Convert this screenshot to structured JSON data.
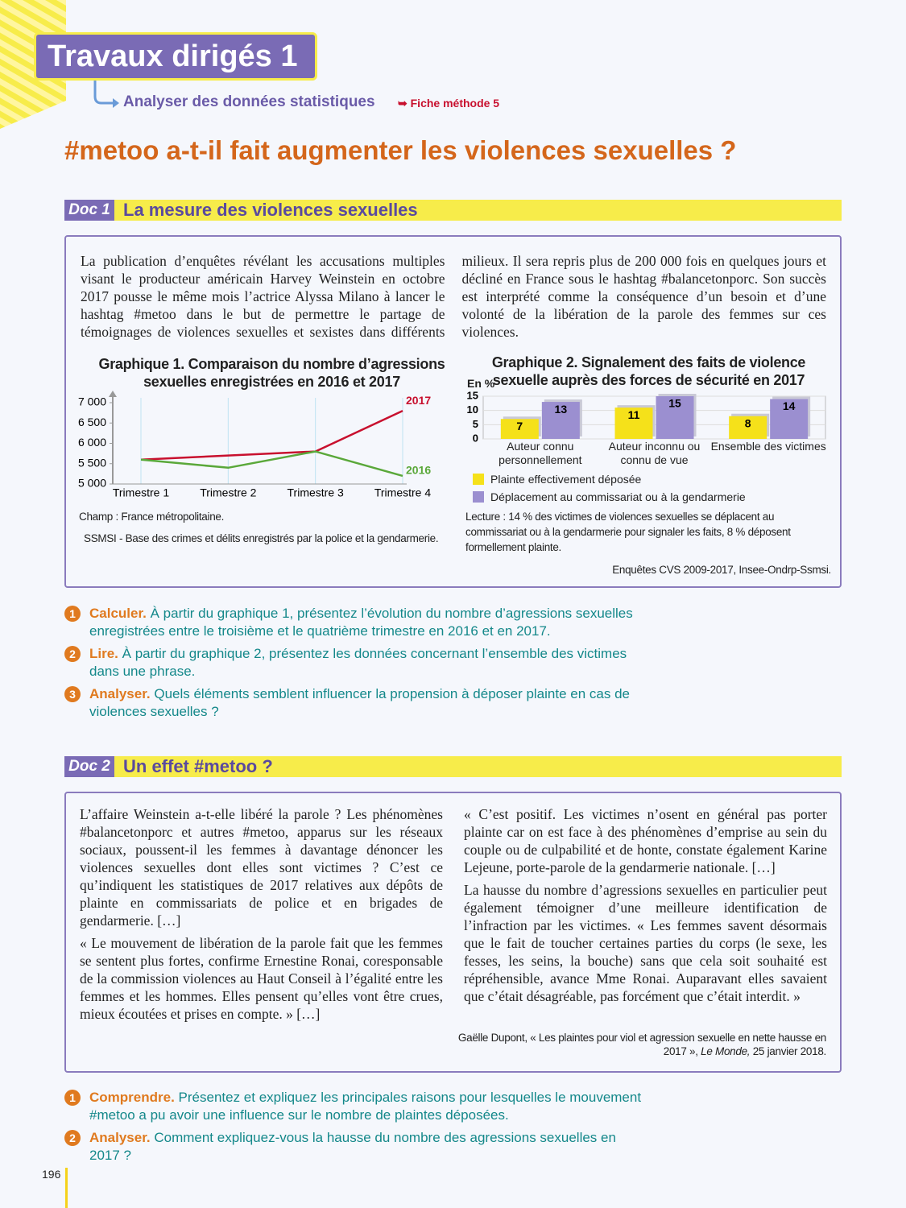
{
  "header": {
    "title": "Travaux dirigés 1",
    "subtitle": "Analyser des données statistiques",
    "method": "Fiche méthode 5"
  },
  "main_title": "#metoo a-t-il fait augmenter les violences sexuelles ?",
  "doc1": {
    "tag": "Doc 1",
    "title": "La mesure des violences sexuelles",
    "text": "La publication d’enquêtes révélant les accusations multiples visant le producteur américain Harvey Weinstein en octobre 2017 pousse le même mois l’actrice Alyssa Milano à lancer le hashtag #metoo dans le but de permettre le partage de témoignages de violences sexuelles et sexistes dans différents milieux. Il sera repris plus de 200 000 fois en quelques jours et décliné en France sous le hashtag #balancetonporc. Son succès est interprété comme la conséquence d’un besoin et d’une volonté de la libération de la parole des femmes sur ces violences.",
    "chart1": {
      "type": "line",
      "title": "Graphique 1. Comparaison du nombre d’agressions sexuelles enregistrées en 2016 et 2017",
      "categories": [
        "Trimestre 1",
        "Trimestre 2",
        "Trimestre 3",
        "Trimestre 4"
      ],
      "series": [
        {
          "name": "2017",
          "color": "#c8102e",
          "values": [
            5600,
            5700,
            5800,
            6800
          ]
        },
        {
          "name": "2016",
          "color": "#5aa83a",
          "values": [
            5600,
            5400,
            5800,
            5200
          ]
        }
      ],
      "ylim": [
        5000,
        7000
      ],
      "yticks": [
        {
          "value": 5000,
          "label": "5 000"
        },
        {
          "value": 5500,
          "label": "5 500"
        },
        {
          "value": 6000,
          "label": "6 000"
        },
        {
          "value": 6500,
          "label": "6 500"
        },
        {
          "value": 7000,
          "label": "7 000"
        }
      ],
      "note": "Champ : France métropolitaine.",
      "source": "SSMSI - Base des crimes et délits enregistrés par la police et la gendarmerie."
    },
    "chart2": {
      "type": "bar",
      "title": "Graphique 2. Signalement des faits de violence sexuelle auprès des forces de sécurité en 2017",
      "y_label": "En %",
      "categories": [
        "Auteur connu personnellement",
        "Auteur inconnu ou connu de vue",
        "Ensemble des victimes"
      ],
      "series": [
        {
          "name": "Plainte effectivement déposée",
          "color": "#f5e11a",
          "values": [
            7,
            11,
            8
          ]
        },
        {
          "name": "Déplacement au commissariat ou à la gendarmerie",
          "color": "#9b8fd0",
          "values": [
            13,
            15,
            14
          ]
        }
      ],
      "ylim": [
        0,
        15
      ],
      "yticks": [
        0,
        5,
        10,
        15
      ],
      "note": "Lecture : 14 % des victimes de violences sexuelles se déplacent au commissariat ou à la gendarmerie pour signaler les faits, 8 % déposent formellement plainte.",
      "source": "Enquêtes CVS 2009-2017, Insee-Ondrp-Ssmsi."
    }
  },
  "questions1": [
    {
      "number": "1",
      "verb": "Calculer.",
      "text": "À partir du graphique 1, présentez l’évolution du nombre d’agressions sexuelles enregistrées entre le troisième et le quatrième trimestre en 2016 et en 2017."
    },
    {
      "number": "2",
      "verb": "Lire.",
      "text": "À partir du graphique 2, présentez les données concernant l’ensemble des victimes dans une phrase."
    },
    {
      "number": "3",
      "verb": "Analyser.",
      "text": "Quels éléments semblent influencer la propension à déposer plainte en cas de violences sexuelles ?"
    }
  ],
  "doc2": {
    "tag": "Doc 2",
    "title": "Un effet #metoo ?",
    "left": [
      "L’affaire Weinstein a-t-elle libéré la parole ? Les phénomènes #balancetonporc et autres #metoo, apparus sur les réseaux sociaux, poussent-il les femmes à davantage dénoncer les violences sexuelles dont elles sont victimes ? C’est ce qu’indiquent les statistiques de 2017 relatives aux dépôts de plainte en commissariats de police et en brigades de gendarmerie. […]",
      "« Le mouvement de libération de la parole fait que les femmes se sentent plus fortes, confirme Ernestine Ronai, coresponsable de la commission violences au Haut Conseil à l’égalité entre les femmes et les hommes. Elles pensent qu’elles vont être crues, mieux écoutées et prises en compte. » […]"
    ],
    "right": [
      "« C’est positif. Les victimes n’osent en général pas porter plainte car on est face à des phénomènes d’emprise au sein du couple ou de culpabilité et de honte, constate également Karine Lejeune, porte-parole de la gendarmerie nationale. […]",
      "La hausse du nombre d’agressions sexuelles en particulier peut également témoigner d’une meilleure identification de l’infraction par les victimes. « Les femmes savent désormais que le fait de toucher certaines parties du corps (le sexe, les fesses, les seins, la bouche) sans que cela soit souhaité est répréhensible, avance Mme Ronai. Auparavant elles savaient que c’était désagréable, pas forcément que c’était interdit. »"
    ],
    "source_author": "Gaëlle Dupont, « Les plaintes pour viol et agression sexuelle en nette hausse en 2017 »,",
    "source_journal": "Le Monde,",
    "source_date": "25 janvier 2018."
  },
  "questions2": [
    {
      "number": "1",
      "verb": "Comprendre.",
      "text": "Présentez et expliquez les principales raisons pour lesquelles le mouvement #metoo a pu avoir une influence sur le nombre de plaintes déposées."
    },
    {
      "number": "2",
      "verb": "Analyser.",
      "text": "Comment expliquez-vous la hausse du nombre des agressions sexuelles en 2017 ?"
    }
  ],
  "page_number": "196"
}
